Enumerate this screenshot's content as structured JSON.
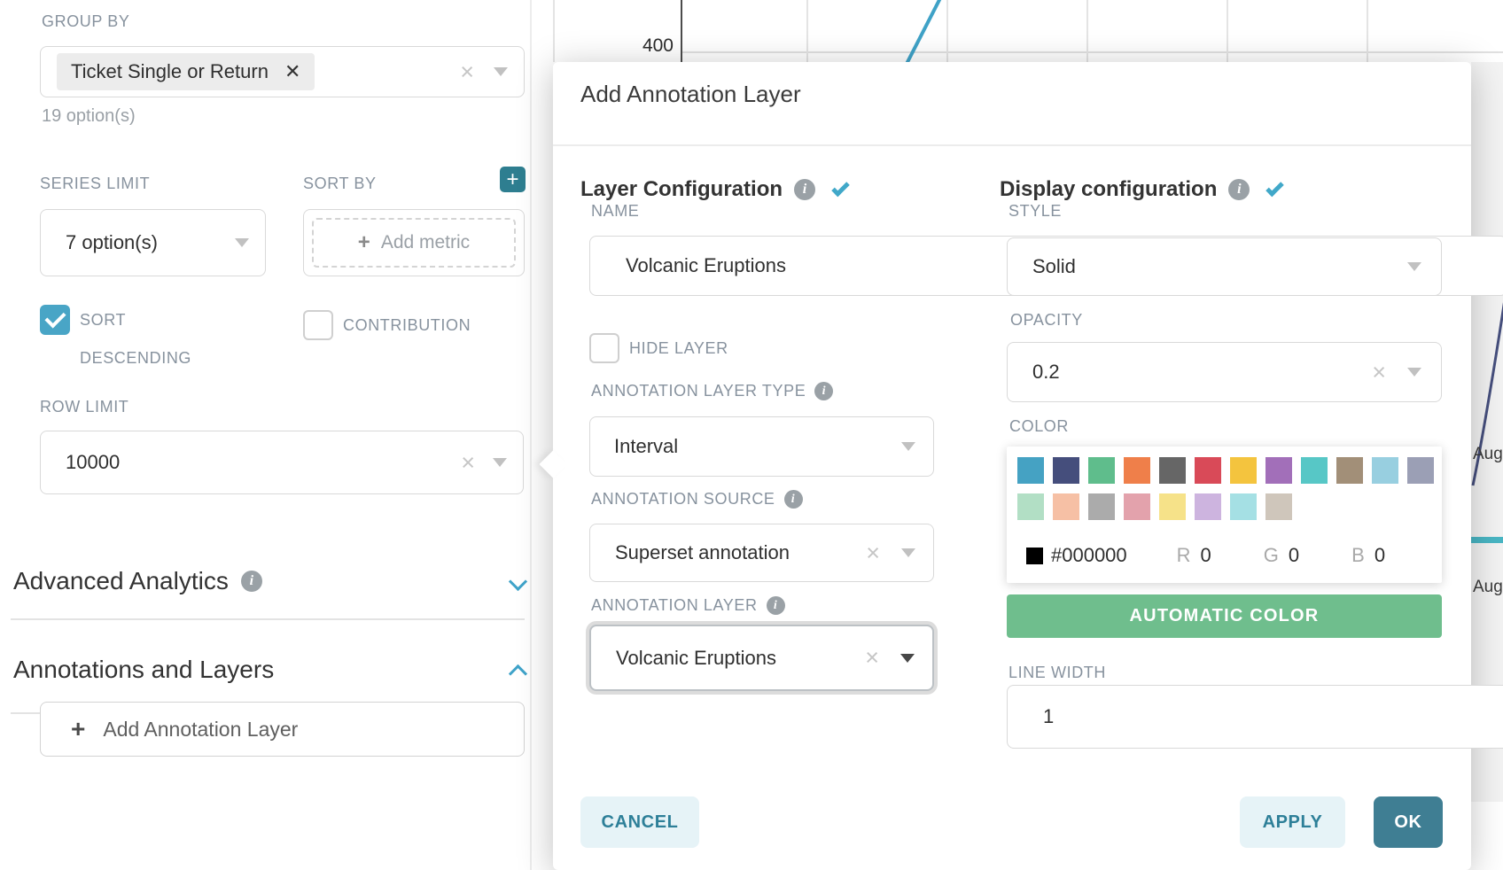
{
  "left_panel": {
    "group_by": {
      "label": "GROUP BY",
      "selected_tag": "Ticket Single or Return",
      "options_hint": "19 option(s)"
    },
    "series_limit": {
      "label": "SERIES LIMIT",
      "value": "7 option(s)"
    },
    "sort_by": {
      "label": "SORT BY",
      "placeholder": "Add metric"
    },
    "sort_descending": {
      "label": "SORT DESCENDING",
      "checked": true
    },
    "contribution": {
      "label": "CONTRIBUTION",
      "checked": false
    },
    "row_limit": {
      "label": "ROW LIMIT",
      "value": "10000"
    },
    "advanced_analytics": {
      "title": "Advanced Analytics"
    },
    "annotations_and_layers": {
      "title": "Annotations and Layers"
    },
    "add_annotation_layer_button": "Add Annotation Layer"
  },
  "modal": {
    "title": "Add Annotation Layer",
    "layer_configuration": {
      "header": "Layer Configuration",
      "name_label": "NAME",
      "name_value": "Volcanic Eruptions",
      "hide_layer_label": "HIDE LAYER",
      "type_label": "ANNOTATION LAYER TYPE",
      "type_value": "Interval",
      "source_label": "ANNOTATION SOURCE",
      "source_value": "Superset annotation",
      "layer_label": "ANNOTATION LAYER",
      "layer_value": "Volcanic Eruptions"
    },
    "display_configuration": {
      "header": "Display configuration",
      "style_label": "STYLE",
      "style_value": "Solid",
      "opacity_label": "OPACITY",
      "opacity_value": "0.2",
      "color_label": "COLOR",
      "palette_row1": [
        "#45A2C3",
        "#454E7C",
        "#5FBD8C",
        "#EF7F4A",
        "#666666",
        "#D94A58",
        "#F4C43E",
        "#A26FB9",
        "#57C7C6",
        "#A28F78",
        "#98CFE0",
        "#9B9FB5"
      ],
      "palette_row2": [
        "#B2DFC5",
        "#F6C0A5",
        "#ABABAB",
        "#E3A2AC",
        "#F6E289",
        "#CDB4DF",
        "#A5E0E4",
        "#CFC6BB"
      ],
      "hex_value": "#000000",
      "r_label": "R",
      "r_value": "0",
      "g_label": "G",
      "g_value": "0",
      "b_label": "B",
      "b_value": "0",
      "automatic_color_label": "AUTOMATIC COLOR",
      "line_width_label": "LINE WIDTH",
      "line_width_value": "1"
    },
    "footer": {
      "cancel": "CANCEL",
      "apply": "APPLY",
      "ok": "OK"
    }
  },
  "background": {
    "y_axis_tick": "400",
    "right_axis_labels": [
      "Aug",
      "Aug"
    ]
  },
  "colors": {
    "accent": "#41A8C9",
    "checkbox_checked": "#49A5C6",
    "plus_button": "#2E7E90",
    "ok_button": "#3F7E93",
    "cancel_apply_background": "#E6F3F7",
    "automatic_color_button": "#6FBE8D",
    "chart_line": "#45A2C3",
    "annotation_line_navy": "#464F7D"
  }
}
